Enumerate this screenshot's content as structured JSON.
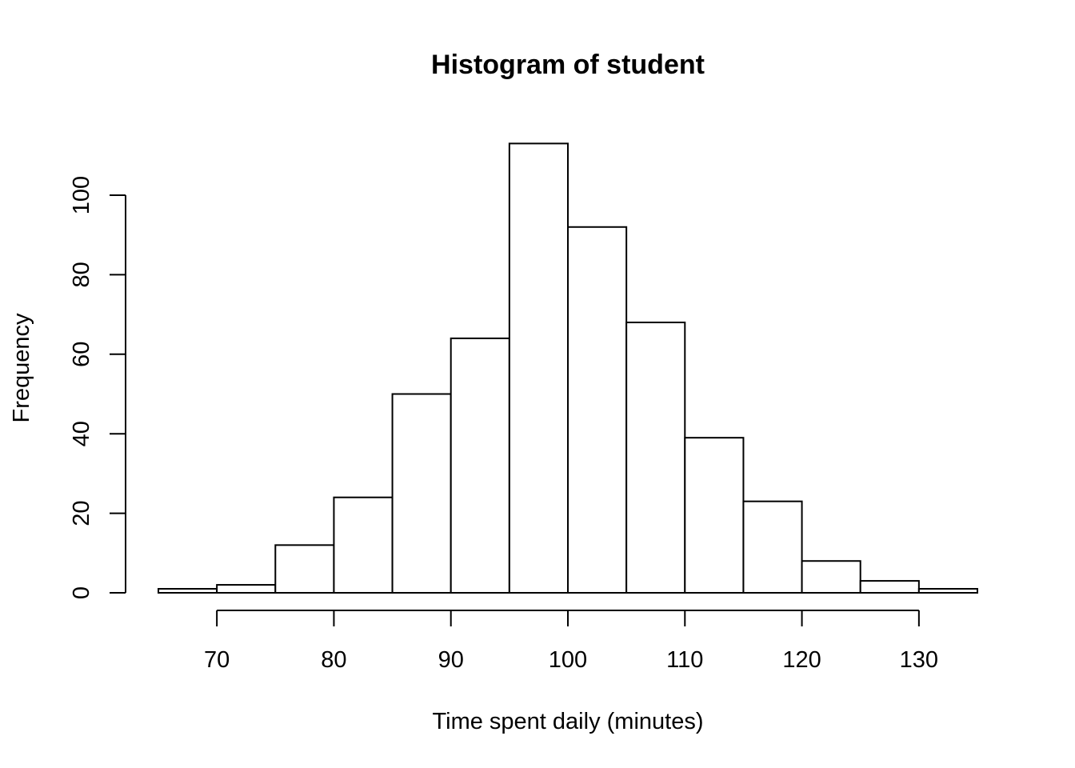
{
  "chart_data": {
    "type": "bar",
    "title": "Histogram of student",
    "xlabel": "Time spent daily (minutes)",
    "ylabel": "Frequency",
    "bin_edges": [
      65,
      70,
      75,
      80,
      85,
      90,
      95,
      100,
      105,
      110,
      115,
      120,
      125,
      130,
      135
    ],
    "values": [
      1,
      2,
      12,
      24,
      50,
      64,
      113,
      92,
      68,
      39,
      23,
      8,
      3,
      1
    ],
    "x_ticks": [
      70,
      80,
      90,
      100,
      110,
      120,
      130
    ],
    "y_ticks": [
      0,
      20,
      40,
      60,
      80,
      100
    ],
    "xlim": [
      65,
      135
    ],
    "ylim": [
      0,
      100
    ],
    "grid": false,
    "bar_fill": "#ffffff",
    "bar_stroke": "#000000"
  }
}
